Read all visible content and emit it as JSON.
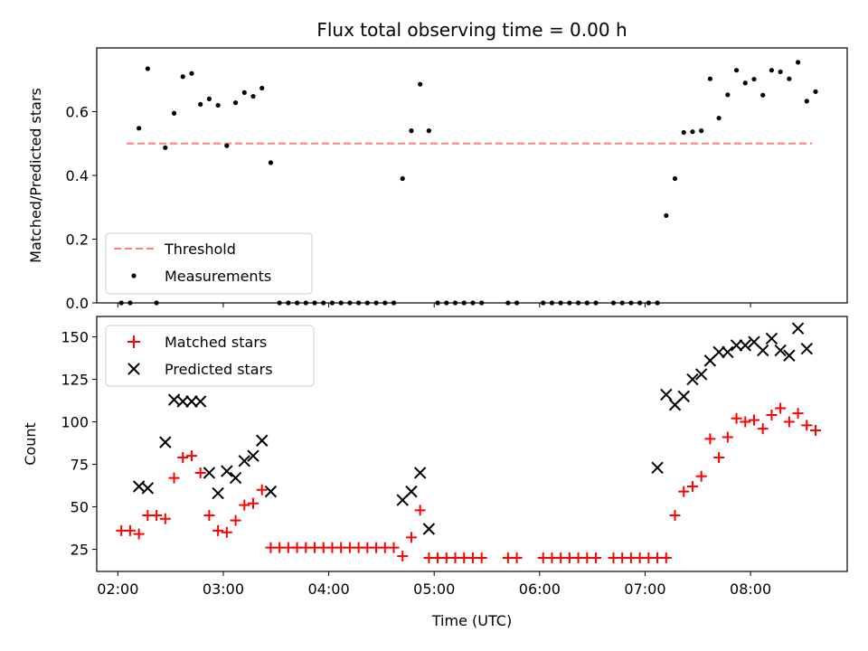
{
  "chart_data": [
    {
      "type": "scatter",
      "title": "Flux total observing time = 0.00 h",
      "xlabel": "",
      "ylabel": "Matched/Predicted stars",
      "ylim": [
        0,
        0.8
      ],
      "yticks": [
        0.0,
        0.2,
        0.4,
        0.6
      ],
      "ytick_labels": [
        "0.0",
        "0.2",
        "0.4",
        "0.6"
      ],
      "xlim": [
        "01:48",
        "08:55"
      ],
      "legend": {
        "location": "lower-left",
        "entries": [
          "Threshold",
          "Measurements"
        ]
      },
      "series": [
        {
          "name": "Threshold",
          "style": "dashed-line",
          "color": "#ff7f7f",
          "points": [
            [
              "02:05",
              0.5
            ],
            [
              "08:35",
              0.5
            ]
          ]
        },
        {
          "name": "Measurements",
          "style": "dot",
          "color": "#000000",
          "points": [
            [
              "02:02",
              0.0
            ],
            [
              "02:07",
              0.0
            ],
            [
              "02:12",
              0.548
            ],
            [
              "02:17",
              0.735
            ],
            [
              "02:22",
              0.0
            ],
            [
              "02:27",
              0.487
            ],
            [
              "02:32",
              0.595
            ],
            [
              "02:37",
              0.71
            ],
            [
              "02:42",
              0.72
            ],
            [
              "02:47",
              0.623
            ],
            [
              "02:52",
              0.64
            ],
            [
              "02:57",
              0.62
            ],
            [
              "03:02",
              0.493
            ],
            [
              "03:07",
              0.628
            ],
            [
              "03:12",
              0.66
            ],
            [
              "03:17",
              0.648
            ],
            [
              "03:22",
              0.674
            ],
            [
              "03:27",
              0.44
            ],
            [
              "03:32",
              0.0
            ],
            [
              "03:37",
              0.0
            ],
            [
              "03:42",
              0.0
            ],
            [
              "03:47",
              0.0
            ],
            [
              "03:52",
              0.0
            ],
            [
              "03:57",
              0.0
            ],
            [
              "04:02",
              0.0
            ],
            [
              "04:07",
              0.0
            ],
            [
              "04:12",
              0.0
            ],
            [
              "04:17",
              0.0
            ],
            [
              "04:22",
              0.0
            ],
            [
              "04:27",
              0.0
            ],
            [
              "04:32",
              0.0
            ],
            [
              "04:37",
              0.0
            ],
            [
              "04:42",
              0.39
            ],
            [
              "04:47",
              0.54
            ],
            [
              "04:52",
              0.686
            ],
            [
              "04:57",
              0.54
            ],
            [
              "05:02",
              0.0
            ],
            [
              "05:07",
              0.0
            ],
            [
              "05:12",
              0.0
            ],
            [
              "05:17",
              0.0
            ],
            [
              "05:22",
              0.0
            ],
            [
              "05:27",
              0.0
            ],
            [
              "05:42",
              0.0
            ],
            [
              "05:47",
              0.0
            ],
            [
              "06:02",
              0.0
            ],
            [
              "06:07",
              0.0
            ],
            [
              "06:12",
              0.0
            ],
            [
              "06:17",
              0.0
            ],
            [
              "06:22",
              0.0
            ],
            [
              "06:27",
              0.0
            ],
            [
              "06:32",
              0.0
            ],
            [
              "06:42",
              0.0
            ],
            [
              "06:47",
              0.0
            ],
            [
              "06:52",
              0.0
            ],
            [
              "06:57",
              0.0
            ],
            [
              "07:02",
              0.0
            ],
            [
              "07:07",
              0.0
            ],
            [
              "07:12",
              0.274
            ],
            [
              "07:17",
              0.39
            ],
            [
              "07:22",
              0.535
            ],
            [
              "07:27",
              0.537
            ],
            [
              "07:32",
              0.54
            ],
            [
              "07:37",
              0.703
            ],
            [
              "07:42",
              0.58
            ],
            [
              "07:47",
              0.653
            ],
            [
              "07:52",
              0.73
            ],
            [
              "07:57",
              0.69
            ],
            [
              "08:02",
              0.702
            ],
            [
              "08:07",
              0.652
            ],
            [
              "08:12",
              0.73
            ],
            [
              "08:17",
              0.725
            ],
            [
              "08:22",
              0.703
            ],
            [
              "08:27",
              0.755
            ],
            [
              "08:32",
              0.633
            ],
            [
              "08:37",
              0.663
            ]
          ]
        }
      ]
    },
    {
      "type": "scatter",
      "title": "",
      "xlabel": "Time (UTC)",
      "ylabel": "Count",
      "ylim": [
        12,
        162
      ],
      "yticks": [
        25,
        50,
        75,
        100,
        125,
        150
      ],
      "ytick_labels": [
        "25",
        "50",
        "75",
        "100",
        "125",
        "150"
      ],
      "xlim": [
        "01:48",
        "08:55"
      ],
      "xticks": [
        "02:00",
        "03:00",
        "04:00",
        "05:00",
        "06:00",
        "07:00",
        "08:00"
      ],
      "xtick_labels": [
        "02:00",
        "03:00",
        "04:00",
        "05:00",
        "06:00",
        "07:00",
        "08:00"
      ],
      "legend": {
        "location": "upper-left",
        "entries": [
          "Matched stars",
          "Predicted stars"
        ]
      },
      "series": [
        {
          "name": "Matched stars",
          "style": "plus",
          "color": "#ff0000",
          "points": [
            [
              "02:02",
              36
            ],
            [
              "02:07",
              36
            ],
            [
              "02:12",
              34
            ],
            [
              "02:17",
              45
            ],
            [
              "02:22",
              45
            ],
            [
              "02:27",
              43
            ],
            [
              "02:32",
              67
            ],
            [
              "02:37",
              79
            ],
            [
              "02:42",
              80
            ],
            [
              "02:47",
              70
            ],
            [
              "02:52",
              45
            ],
            [
              "02:57",
              36
            ],
            [
              "03:02",
              35
            ],
            [
              "03:07",
              42
            ],
            [
              "03:12",
              51
            ],
            [
              "03:17",
              52
            ],
            [
              "03:22",
              60
            ],
            [
              "03:27",
              26
            ],
            [
              "03:32",
              26
            ],
            [
              "03:37",
              26
            ],
            [
              "03:42",
              26
            ],
            [
              "03:47",
              26
            ],
            [
              "03:52",
              26
            ],
            [
              "03:57",
              26
            ],
            [
              "04:02",
              26
            ],
            [
              "04:07",
              26
            ],
            [
              "04:12",
              26
            ],
            [
              "04:17",
              26
            ],
            [
              "04:22",
              26
            ],
            [
              "04:27",
              26
            ],
            [
              "04:32",
              26
            ],
            [
              "04:37",
              26
            ],
            [
              "04:42",
              21
            ],
            [
              "04:47",
              32
            ],
            [
              "04:52",
              48
            ],
            [
              "04:57",
              20
            ],
            [
              "05:02",
              20
            ],
            [
              "05:07",
              20
            ],
            [
              "05:12",
              20
            ],
            [
              "05:17",
              20
            ],
            [
              "05:22",
              20
            ],
            [
              "05:27",
              20
            ],
            [
              "05:42",
              20
            ],
            [
              "05:47",
              20
            ],
            [
              "06:02",
              20
            ],
            [
              "06:07",
              20
            ],
            [
              "06:12",
              20
            ],
            [
              "06:17",
              20
            ],
            [
              "06:22",
              20
            ],
            [
              "06:27",
              20
            ],
            [
              "06:32",
              20
            ],
            [
              "06:42",
              20
            ],
            [
              "06:47",
              20
            ],
            [
              "06:52",
              20
            ],
            [
              "06:57",
              20
            ],
            [
              "07:02",
              20
            ],
            [
              "07:07",
              20
            ],
            [
              "07:12",
              20
            ],
            [
              "07:17",
              45
            ],
            [
              "07:22",
              59
            ],
            [
              "07:27",
              62
            ],
            [
              "07:32",
              68
            ],
            [
              "07:37",
              90
            ],
            [
              "07:42",
              79
            ],
            [
              "07:47",
              91
            ],
            [
              "07:52",
              102
            ],
            [
              "07:57",
              100
            ],
            [
              "08:02",
              101
            ],
            [
              "08:07",
              96
            ],
            [
              "08:12",
              104
            ],
            [
              "08:17",
              108
            ],
            [
              "08:22",
              100
            ],
            [
              "08:27",
              105
            ],
            [
              "08:32",
              98
            ],
            [
              "08:37",
              95
            ]
          ]
        },
        {
          "name": "Predicted stars",
          "style": "x",
          "color": "#000000",
          "points": [
            [
              "02:12",
              62
            ],
            [
              "02:17",
              61
            ],
            [
              "02:27",
              88
            ],
            [
              "02:32",
              113
            ],
            [
              "02:37",
              112
            ],
            [
              "02:42",
              112
            ],
            [
              "02:47",
              112
            ],
            [
              "02:52",
              70
            ],
            [
              "02:57",
              58
            ],
            [
              "03:02",
              71
            ],
            [
              "03:07",
              67
            ],
            [
              "03:12",
              77
            ],
            [
              "03:17",
              80
            ],
            [
              "03:22",
              89
            ],
            [
              "03:27",
              59
            ],
            [
              "04:42",
              54
            ],
            [
              "04:47",
              59
            ],
            [
              "04:52",
              70
            ],
            [
              "04:57",
              37
            ],
            [
              "07:07",
              73
            ],
            [
              "07:12",
              116
            ],
            [
              "07:17",
              110
            ],
            [
              "07:22",
              115
            ],
            [
              "07:27",
              125
            ],
            [
              "07:32",
              128
            ],
            [
              "07:37",
              136
            ],
            [
              "07:42",
              141
            ],
            [
              "07:47",
              141
            ],
            [
              "07:52",
              145
            ],
            [
              "07:57",
              145
            ],
            [
              "08:02",
              147
            ],
            [
              "08:07",
              142
            ],
            [
              "08:12",
              149
            ],
            [
              "08:17",
              142
            ],
            [
              "08:22",
              139
            ],
            [
              "08:27",
              155
            ],
            [
              "08:32",
              143
            ]
          ]
        }
      ]
    }
  ]
}
